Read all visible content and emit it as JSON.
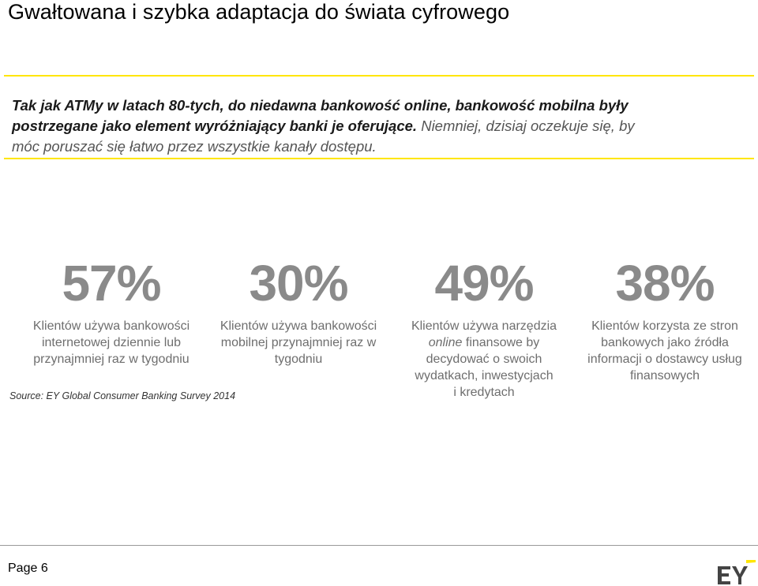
{
  "title": "Gwałtowana i szybka adaptacja do świata cyfrowego",
  "callout": {
    "line1": "Tak jak ATMy w latach 80-tych, do niedawna bankowość online, bankowość mobilna były",
    "line2a": "postrzegane jako element wyróżniający banki je oferujące.",
    "line2b": " Niemniej, dzisiaj oczekuje się, by",
    "line3": "móc poruszać się łatwo przez wszystkie kanały dostępu."
  },
  "stats": [
    {
      "percent": "57%",
      "line1": "Klientów używa bankowości",
      "line2": "internetowej dziennie lub",
      "line3": "przynajmniej raz w tygodniu"
    },
    {
      "percent": "30%",
      "line1": "Klientów używa bankowości",
      "line2": "mobilnej przynajmniej raz w",
      "line3": "tygodniu"
    },
    {
      "percent": "49%",
      "line1": "Klientów używa narzędzia",
      "line2_italic": "online",
      "line2_rest": " finansowe by",
      "line3": "decydować o swoich",
      "line4": "wydatkach, inwestycjach",
      "line5": "i kredytach"
    },
    {
      "percent": "38%",
      "line1": "Klientów korzysta ze stron",
      "line2": "bankowych jako źródła",
      "line3": "informacji o dostawcy usług",
      "line4": "finansowych"
    }
  ],
  "source": "Source: EY Global Consumer Banking Survey 2014",
  "footer": {
    "page": "Page 6",
    "logo_text": "EY"
  },
  "colors": {
    "accent": "#ffe600",
    "stat_grey": "#8a8a8a"
  }
}
